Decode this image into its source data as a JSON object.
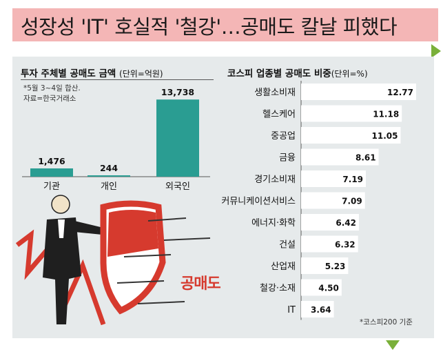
{
  "headline": "성장성 'IT' 호실적 '철강'…공매도 칼날 피했다",
  "tag": "공매도",
  "chart_data": [
    {
      "type": "bar",
      "title": "투자 주체별 공매도 금액",
      "unit_label": "(단위=억원)",
      "note_lines": [
        "*5월 3~4일 합산.",
        "자료=한국거래소"
      ],
      "categories": [
        "기관",
        "개인",
        "외국인"
      ],
      "values": [
        1476,
        244,
        13738
      ],
      "value_labels": [
        "1,476",
        "244",
        "13,738"
      ],
      "ylim": [
        0,
        14500
      ],
      "color": "#2a9d92"
    },
    {
      "type": "bar",
      "orientation": "horizontal",
      "title": "코스피 업종별 공매도 비중",
      "unit_label": "(단위=%)",
      "categories": [
        "생활소비재",
        "헬스케어",
        "중공업",
        "금융",
        "경기소비재",
        "커뮤니케이션서비스",
        "에너지·화학",
        "건설",
        "산업재",
        "철강·소재",
        "IT"
      ],
      "values": [
        12.77,
        11.18,
        11.05,
        8.61,
        7.19,
        7.09,
        6.42,
        6.32,
        5.23,
        4.5,
        3.64
      ],
      "value_labels": [
        "12.77",
        "11.18",
        "11.05",
        "8.61",
        "7.19",
        "7.09",
        "6.42",
        "6.32",
        "5.23",
        "4.50",
        "3.64"
      ],
      "footnote": "*코스피200 기준",
      "color": "#ffffff"
    }
  ]
}
